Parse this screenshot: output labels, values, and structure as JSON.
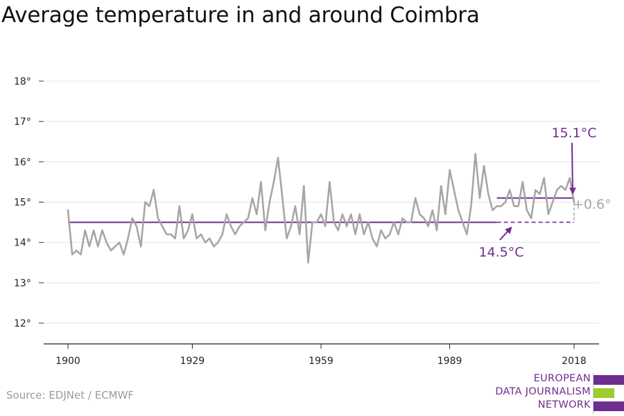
{
  "title": "Average temperature in and around Coimbra",
  "source": "Source: EDJNet / ECMWF",
  "logo": {
    "lines": [
      "EUROPEAN",
      "DATA JOURNALISM",
      "NETWORK"
    ],
    "colors": {
      "purple": "#6d2e8e",
      "green": "#9ccc2e"
    }
  },
  "chart_data": {
    "type": "line",
    "title": "Average temperature in and around Coimbra",
    "xlabel": "",
    "ylabel": "",
    "xlim": [
      1900,
      2018
    ],
    "ylim": [
      12,
      18
    ],
    "x_ticks": [
      1900,
      1929,
      1959,
      1989,
      2018
    ],
    "y_ticks": [
      12,
      13,
      14,
      15,
      16,
      17,
      18
    ],
    "y_tick_labels": [
      "12°",
      "13°",
      "14°",
      "15°",
      "16°",
      "17°",
      "18°"
    ],
    "grid": "horizontal",
    "colors": {
      "series": "#a6a6a6",
      "reference": "#6d2e8e",
      "delta": "#a6a6a6"
    },
    "series": [
      {
        "x": [
          1900,
          1901,
          1902,
          1903,
          1904,
          1905,
          1906,
          1907,
          1908,
          1909,
          1910,
          1911,
          1912,
          1913,
          1914,
          1915,
          1916,
          1917,
          1918,
          1919,
          1920,
          1921,
          1922,
          1923,
          1924,
          1925,
          1926,
          1927,
          1928,
          1929,
          1930,
          1931,
          1932,
          1933,
          1934,
          1935,
          1936,
          1937,
          1938,
          1939,
          1940,
          1941,
          1942,
          1943,
          1944,
          1945,
          1946,
          1947,
          1948,
          1949,
          1950,
          1951,
          1952,
          1953,
          1954,
          1955,
          1956,
          1957,
          1958,
          1959,
          1960,
          1961,
          1962,
          1963,
          1964,
          1965,
          1966,
          1967,
          1968,
          1969,
          1970,
          1971,
          1972,
          1973,
          1974,
          1975,
          1976,
          1977,
          1978,
          1979,
          1980,
          1981,
          1982,
          1983,
          1984,
          1985,
          1986,
          1987,
          1988,
          1989,
          1990,
          1991,
          1992,
          1993,
          1994,
          1995,
          1996,
          1997,
          1998,
          1999,
          2000,
          2001,
          2002,
          2003,
          2004,
          2005,
          2006,
          2007,
          2008,
          2009,
          2010,
          2011,
          2012,
          2013,
          2014,
          2015,
          2016,
          2017,
          2018
        ],
        "y": [
          14.8,
          13.7,
          13.8,
          13.7,
          14.3,
          13.9,
          14.3,
          13.9,
          14.3,
          14.0,
          13.8,
          13.9,
          14.0,
          13.7,
          14.1,
          14.6,
          14.4,
          13.9,
          15.0,
          14.9,
          15.3,
          14.6,
          14.4,
          14.2,
          14.2,
          14.1,
          14.9,
          14.1,
          14.3,
          14.7,
          14.1,
          14.2,
          14.0,
          14.1,
          13.9,
          14.0,
          14.2,
          14.7,
          14.4,
          14.2,
          14.4,
          14.5,
          14.6,
          15.1,
          14.7,
          15.5,
          14.3,
          15.0,
          15.5,
          16.1,
          15.1,
          14.1,
          14.4,
          14.9,
          14.2,
          15.4,
          13.5,
          14.5,
          14.5,
          14.7,
          14.4,
          15.5,
          14.5,
          14.3,
          14.7,
          14.4,
          14.7,
          14.2,
          14.7,
          14.2,
          14.5,
          14.1,
          13.9,
          14.3,
          14.1,
          14.2,
          14.5,
          14.2,
          14.6,
          14.5,
          14.5,
          15.1,
          14.7,
          14.6,
          14.4,
          14.8,
          14.3,
          15.4,
          14.7,
          15.8,
          15.3,
          14.8,
          14.5,
          14.2,
          14.9,
          16.2,
          15.1,
          15.9,
          15.2,
          14.8,
          14.9,
          14.9,
          15.0,
          15.3,
          14.9,
          14.9,
          15.5,
          14.8,
          14.6,
          15.3,
          15.2,
          15.6,
          14.7,
          15.0,
          15.3,
          15.4,
          15.3,
          15.6,
          15.0
        ]
      }
    ],
    "reference_lines": [
      {
        "label": "14.5°C",
        "value": 14.5,
        "x_start": 1900,
        "x_end": 2018
      },
      {
        "label": "15.1°C",
        "value": 15.1,
        "x_start": 2000,
        "x_end": 2018
      }
    ],
    "annotations": [
      {
        "text": "15.1°C",
        "x": 2018,
        "y": 15.1
      },
      {
        "text": "14.5°C",
        "x": 2003,
        "y": 14.5
      },
      {
        "text": "+0.6°",
        "x": 2018,
        "y": 14.95
      }
    ]
  }
}
